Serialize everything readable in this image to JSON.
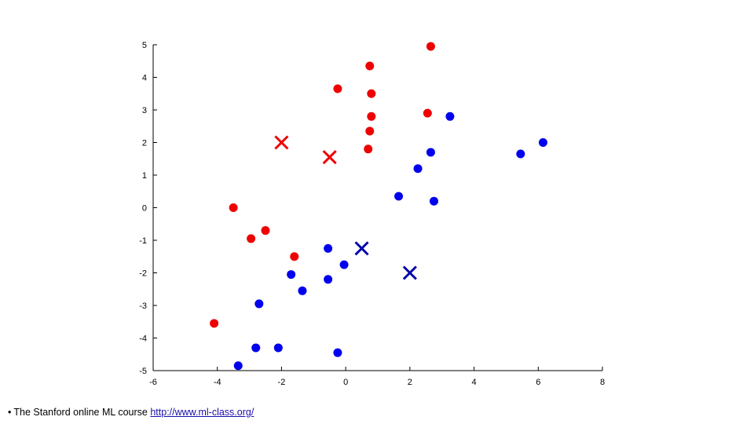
{
  "chart_data": {
    "type": "scatter",
    "xlim": [
      -6,
      8
    ],
    "ylim": [
      -5,
      5
    ],
    "xticks": [
      -6,
      -4,
      -2,
      0,
      2,
      4,
      6,
      8
    ],
    "yticks": [
      -5,
      -4,
      -3,
      -2,
      -1,
      0,
      1,
      2,
      3,
      4,
      5
    ],
    "grid": false,
    "series": [
      {
        "color": "#ee0000",
        "marker": "circle",
        "points": [
          [
            2.65,
            4.95
          ],
          [
            0.75,
            4.35
          ],
          [
            -0.25,
            3.65
          ],
          [
            0.8,
            3.5
          ],
          [
            0.8,
            2.8
          ],
          [
            2.55,
            2.9
          ],
          [
            0.75,
            2.35
          ],
          [
            0.7,
            1.8
          ],
          [
            -3.5,
            0.0
          ],
          [
            -2.5,
            -0.7
          ],
          [
            -2.95,
            -0.95
          ],
          [
            -1.6,
            -1.5
          ],
          [
            -4.1,
            -3.55
          ]
        ]
      },
      {
        "color": "#0000ee",
        "marker": "circle",
        "points": [
          [
            3.25,
            2.8
          ],
          [
            6.15,
            2.0
          ],
          [
            5.45,
            1.65
          ],
          [
            2.65,
            1.7
          ],
          [
            2.25,
            1.2
          ],
          [
            1.65,
            0.35
          ],
          [
            2.75,
            0.2
          ],
          [
            -0.55,
            -1.25
          ],
          [
            -0.05,
            -1.75
          ],
          [
            -1.7,
            -2.05
          ],
          [
            -0.55,
            -2.2
          ],
          [
            -1.35,
            -2.55
          ],
          [
            -2.7,
            -2.95
          ],
          [
            -2.8,
            -4.3
          ],
          [
            -2.1,
            -4.3
          ],
          [
            -0.25,
            -4.45
          ],
          [
            -3.35,
            -4.85
          ]
        ]
      },
      {
        "color": "#ee0000",
        "marker": "x",
        "points": [
          [
            -2.0,
            2.0
          ],
          [
            -0.5,
            1.55
          ]
        ]
      },
      {
        "color": "#0000aa",
        "marker": "x",
        "points": [
          [
            0.5,
            -1.25
          ],
          [
            2.0,
            -2.0
          ]
        ]
      }
    ]
  },
  "footer": {
    "bullet": "•",
    "text": "The Stanford online ML course",
    "link_text": "http://www.ml-class.org/"
  }
}
